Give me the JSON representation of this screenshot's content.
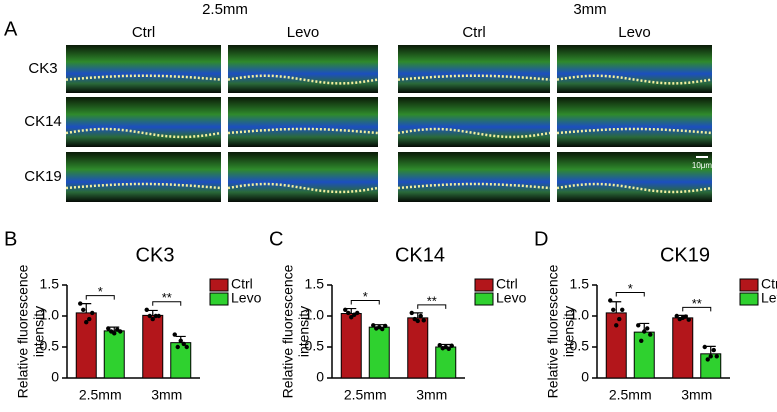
{
  "panel_a": {
    "label": "A",
    "groups": [
      "2.5mm",
      "3mm"
    ],
    "columns": [
      "Ctrl",
      "Levo",
      "Ctrl",
      "Levo"
    ],
    "rows": [
      "CK3",
      "CK14",
      "CK19"
    ],
    "scale_bar": "10μm"
  },
  "chart_data": [
    {
      "type": "bar",
      "panel_label": "B",
      "title": "CK3",
      "y_label": [
        "Relative fluorescence",
        "intensity"
      ],
      "categories": [
        "2.5mm",
        "3mm"
      ],
      "ylim": [
        0,
        1.5
      ],
      "yticks": [
        0,
        0.5,
        {
          "value": 1,
          "label": "1.0"
        },
        1.5
      ],
      "series": [
        {
          "name": "Ctrl",
          "color": "#b3161b",
          "values": [
            1.05,
            1.01
          ],
          "errors": [
            0.15,
            0.08
          ],
          "points": [
            [
              1.2,
              1.1,
              0.9,
              0.95,
              1.05
            ],
            [
              1.1,
              1.0,
              0.95,
              1.0,
              1.0
            ]
          ]
        },
        {
          "name": "Levo",
          "color": "#2fd12f",
          "values": [
            0.76,
            0.57
          ],
          "errors": [
            0.06,
            0.1
          ],
          "points": [
            [
              0.8,
              0.75,
              0.72,
              0.78,
              0.75
            ],
            [
              0.7,
              0.5,
              0.6,
              0.55,
              0.5
            ]
          ]
        }
      ],
      "significance": [
        "*",
        "**"
      ]
    },
    {
      "type": "bar",
      "panel_label": "C",
      "title": "CK14",
      "y_label": [
        "Relative fluorescence",
        "intensity"
      ],
      "categories": [
        "2.5mm",
        "3mm"
      ],
      "ylim": [
        0,
        1.5
      ],
      "yticks": [
        0,
        0.5,
        {
          "value": 1,
          "label": "1.0"
        },
        1.5
      ],
      "series": [
        {
          "name": "Ctrl",
          "color": "#b3161b",
          "values": [
            1.04,
            0.97
          ],
          "errors": [
            0.08,
            0.08
          ],
          "points": [
            [
              1.1,
              1.05,
              0.98,
              1.02,
              1.05
            ],
            [
              1.05,
              0.95,
              0.92,
              1.0,
              0.93
            ]
          ]
        },
        {
          "name": "Levo",
          "color": "#2fd12f",
          "values": [
            0.82,
            0.5
          ],
          "errors": [
            0.04,
            0.04
          ],
          "points": [
            [
              0.85,
              0.8,
              0.82,
              0.79,
              0.84
            ],
            [
              0.53,
              0.48,
              0.5,
              0.47,
              0.52
            ]
          ]
        }
      ],
      "significance": [
        "*",
        "**"
      ]
    },
    {
      "type": "bar",
      "panel_label": "D",
      "title": "CK19",
      "y_label": [
        "Relative fluorescence",
        "intensity"
      ],
      "categories": [
        "2.5mm",
        "3mm"
      ],
      "ylim": [
        0,
        1.5
      ],
      "yticks": [
        0,
        0.5,
        {
          "value": 1,
          "label": "1.0"
        },
        1.5
      ],
      "series": [
        {
          "name": "Ctrl",
          "color": "#b3161b",
          "values": [
            1.05,
            0.97
          ],
          "errors": [
            0.18,
            0.04
          ],
          "points": [
            [
              1.25,
              1.1,
              0.85,
              0.95,
              1.1
            ],
            [
              1.0,
              0.95,
              0.97,
              0.99,
              0.94
            ]
          ]
        },
        {
          "name": "Levo",
          "color": "#2fd12f",
          "values": [
            0.74,
            0.39
          ],
          "errors": [
            0.14,
            0.12
          ],
          "points": [
            [
              0.85,
              0.6,
              0.75,
              0.8,
              0.7
            ],
            [
              0.5,
              0.3,
              0.35,
              0.45,
              0.35
            ]
          ]
        }
      ],
      "significance": [
        "*",
        "**"
      ]
    }
  ]
}
